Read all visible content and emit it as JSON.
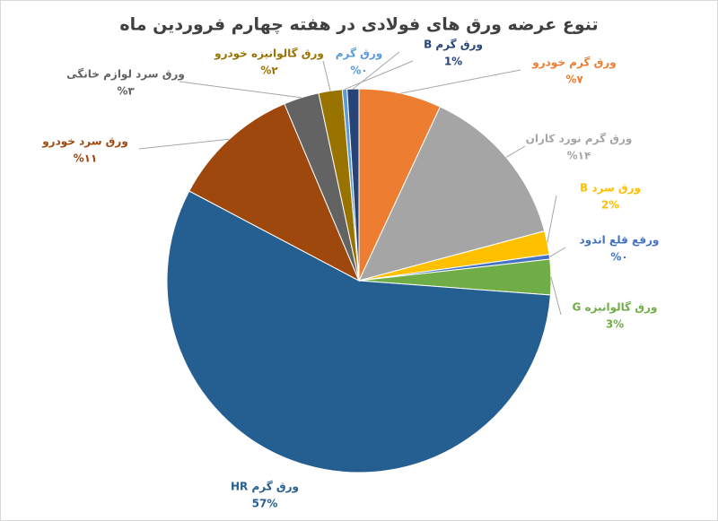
{
  "chart_data": {
    "type": "pie",
    "title": "تنوع عرضه ورق های فولادی در هفته چهارم فروردین ماه",
    "categories": [
      "ورق گرم خودرو",
      "ورق گرم نورد کاران",
      "ورق سرد B",
      "ورقع قلع اندود",
      "ورق گالوانیزه G",
      "ورق گرم HR",
      "ورق سرد خودرو",
      "ورق سرد لوازم خانگی",
      "ورق گالوانیزه خودرو",
      "ورق گرم",
      "ورق گرم B"
    ],
    "values": [
      7,
      14,
      2,
      0.4,
      3,
      57,
      11,
      3,
      2,
      0.4,
      1
    ],
    "value_labels": [
      "%۷",
      "%۱۴",
      "2%",
      "%۰",
      "3%",
      "57%",
      "%۱۱",
      "%۳",
      "%۲",
      "%۰",
      "1%"
    ],
    "colors": [
      "#ed7d31",
      "#a5a5a5",
      "#ffc000",
      "#4472c4",
      "#70ad47",
      "#255e91",
      "#9e480e",
      "#636363",
      "#997300",
      "#5b9bd5",
      "#264478"
    ]
  }
}
